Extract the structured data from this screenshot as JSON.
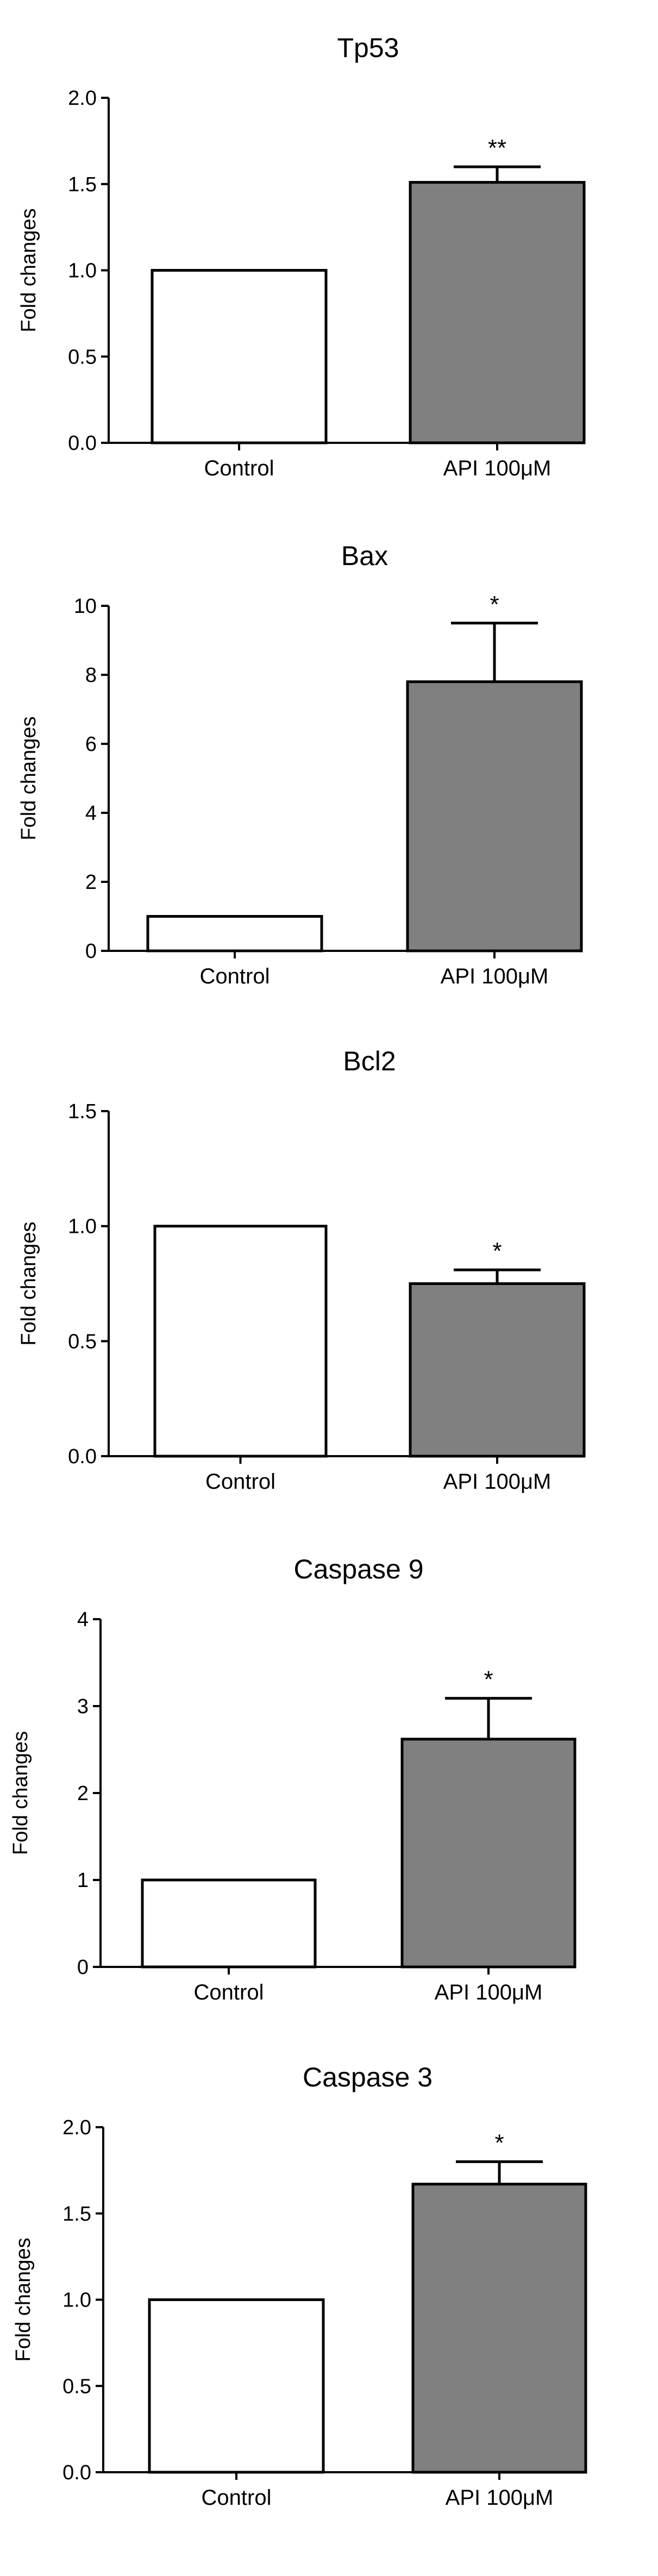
{
  "colors": {
    "background": "#ffffff",
    "control_fill": "#ffffff",
    "treatment_fill": "#808080",
    "stroke": "#000000"
  },
  "chart_data": [
    {
      "type": "bar",
      "title": "Tp53",
      "ylabel": "Fold changes",
      "categories": [
        "Control",
        "API 100μM"
      ],
      "values": [
        1.0,
        1.51
      ],
      "error": [
        0,
        0.09
      ],
      "significance": [
        "",
        "**"
      ],
      "ylim": [
        0,
        2.0
      ],
      "yticks": [
        0,
        0.5,
        1.0,
        1.5,
        2.0
      ],
      "ytick_labels": [
        "0.0",
        "0.5",
        "1.0",
        "1.5",
        "2.0"
      ],
      "grid": false
    },
    {
      "type": "bar",
      "title": "Bax",
      "ylabel": "Fold changes",
      "categories": [
        "Control",
        "API 100μM"
      ],
      "values": [
        1.0,
        7.8
      ],
      "error": [
        0,
        1.7
      ],
      "significance": [
        "",
        "*"
      ],
      "ylim": [
        0,
        10
      ],
      "yticks": [
        0,
        2,
        4,
        6,
        8,
        10
      ],
      "ytick_labels": [
        "0",
        "2",
        "4",
        "6",
        "8",
        "10"
      ],
      "grid": false
    },
    {
      "type": "bar",
      "title": "Bcl2",
      "ylabel": "Fold changes",
      "categories": [
        "Control",
        "API 100μM"
      ],
      "values": [
        1.0,
        0.75
      ],
      "error": [
        0,
        0.06
      ],
      "significance": [
        "",
        "*"
      ],
      "ylim": [
        0,
        1.5
      ],
      "yticks": [
        0,
        0.5,
        1.0,
        1.5
      ],
      "ytick_labels": [
        "0.0",
        "0.5",
        "1.0",
        "1.5"
      ],
      "grid": false
    },
    {
      "type": "bar",
      "title": "Caspase 9",
      "ylabel": "Fold changes",
      "categories": [
        "Control",
        "API 100μM"
      ],
      "values": [
        1.0,
        2.62
      ],
      "error": [
        0,
        0.47
      ],
      "significance": [
        "",
        "*"
      ],
      "ylim": [
        0,
        4
      ],
      "yticks": [
        0,
        1,
        2,
        3,
        4
      ],
      "ytick_labels": [
        "0",
        "1",
        "2",
        "3",
        "4"
      ],
      "grid": false
    },
    {
      "type": "bar",
      "title": "Caspase 3",
      "ylabel": "Fold changes",
      "categories": [
        "Control",
        "API 100μM"
      ],
      "values": [
        1.0,
        1.67
      ],
      "error": [
        0,
        0.13
      ],
      "significance": [
        "",
        "*"
      ],
      "ylim": [
        0,
        2.0
      ],
      "yticks": [
        0,
        0.5,
        1.0,
        1.5,
        2.0
      ],
      "ytick_labels": [
        "0.0",
        "0.5",
        "1.0",
        "1.5",
        "2.0"
      ],
      "grid": false
    }
  ]
}
